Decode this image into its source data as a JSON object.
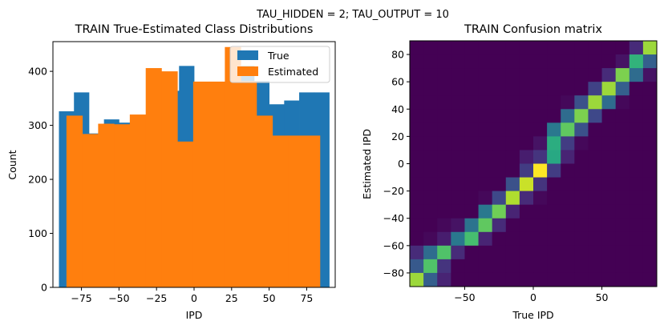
{
  "figure": {
    "suptitle": "TAU_HIDDEN = 2; TAU_OUTPUT = 10"
  },
  "colors": {
    "true": "#1f77b4",
    "estimated": "#ff7f0e",
    "viridis": [
      "#440154",
      "#482878",
      "#3e4989",
      "#31688e",
      "#26828e",
      "#1f9e89",
      "#35b779",
      "#6ece58",
      "#b5de2b",
      "#fde725"
    ]
  },
  "chart_data": [
    {
      "type": "bar",
      "title": "TRAIN True-Estimated Class Distributions",
      "xlabel": "IPD",
      "ylabel": "Count",
      "xlim": [
        -94,
        94
      ],
      "ylim": [
        0,
        455
      ],
      "xticks": [
        -75,
        -50,
        -25,
        0,
        25,
        50,
        75
      ],
      "xtick_labels": [
        "−75",
        "−50",
        "−25",
        "0",
        "25",
        "50",
        "75"
      ],
      "yticks": [
        0,
        100,
        200,
        300,
        400
      ],
      "yticks_labels": [
        "0",
        "100",
        "200",
        "300",
        "400"
      ],
      "legend": {
        "position": "upper right",
        "entries": [
          "True",
          "Estimated"
        ]
      },
      "series": [
        {
          "name": "True",
          "bin_edges": [
            -90,
            -80,
            -70,
            -60,
            -50,
            -40,
            -30,
            -20,
            -10,
            0,
            10,
            20,
            30,
            40,
            50,
            60,
            70,
            80,
            90
          ],
          "values": [
            326,
            361,
            285,
            311,
            305,
            318,
            380,
            364,
            410,
            327,
            380,
            362,
            410,
            382,
            339,
            346,
            361,
            361
          ]
        },
        {
          "name": "Estimated",
          "bin_edges": [
            -85,
            -74.4,
            -63.9,
            -53.3,
            -42.8,
            -32.2,
            -21.7,
            -11.1,
            -0.6,
            10,
            20.5,
            31.1,
            41.6,
            52.2,
            62.7,
            73.3,
            83.8
          ],
          "values": [
            318,
            284,
            303,
            302,
            320,
            406,
            400,
            270,
            381,
            381,
            445,
            382,
            318,
            281,
            281,
            281
          ]
        }
      ]
    },
    {
      "type": "heatmap",
      "title": "TRAIN Confusion matrix",
      "xlabel": "True IPD",
      "ylabel": "Estimated IPD",
      "extent": [
        -90,
        90,
        -90,
        90
      ],
      "xticks": [
        -50,
        0,
        50
      ],
      "xtick_labels": [
        "−50",
        "0",
        "50"
      ],
      "yticks": [
        -80,
        -60,
        -40,
        -20,
        0,
        20,
        40,
        60,
        80
      ],
      "ytick_labels": [
        "−80",
        "−60",
        "−40",
        "−20",
        "0",
        "20",
        "40",
        "60",
        "80"
      ],
      "colormap": "viridis",
      "cells_note": "rows ordered top (estimated +85) to bottom (estimated −85), columns left (true −85) to right (true +85); values 0..1",
      "matrix": [
        [
          0,
          0,
          0,
          0,
          0,
          0,
          0,
          0,
          0,
          0,
          0,
          0,
          0,
          0,
          0,
          0,
          0.12,
          0.85
        ],
        [
          0,
          0,
          0,
          0,
          0,
          0,
          0,
          0,
          0,
          0,
          0,
          0,
          0,
          0,
          0,
          0.05,
          0.65,
          0.3
        ],
        [
          0,
          0,
          0,
          0,
          0,
          0,
          0,
          0,
          0,
          0,
          0,
          0,
          0,
          0,
          0.12,
          0.8,
          0.35,
          0.05
        ],
        [
          0,
          0,
          0,
          0,
          0,
          0,
          0,
          0,
          0,
          0,
          0,
          0,
          0,
          0.2,
          0.85,
          0.3,
          0,
          0
        ],
        [
          0,
          0,
          0,
          0,
          0,
          0,
          0,
          0,
          0,
          0,
          0,
          0.02,
          0.25,
          0.85,
          0.35,
          0.02,
          0,
          0
        ],
        [
          0,
          0,
          0,
          0,
          0,
          0,
          0,
          0,
          0,
          0,
          0,
          0.35,
          0.8,
          0.22,
          0,
          0,
          0,
          0
        ],
        [
          0,
          0,
          0,
          0,
          0,
          0,
          0,
          0,
          0,
          0,
          0.4,
          0.75,
          0.25,
          0,
          0,
          0,
          0,
          0
        ],
        [
          0,
          0,
          0,
          0,
          0,
          0,
          0,
          0,
          0,
          0.05,
          0.62,
          0.18,
          0.02,
          0,
          0,
          0,
          0,
          0
        ],
        [
          0,
          0,
          0,
          0,
          0,
          0,
          0,
          0,
          0.08,
          0.15,
          0.6,
          0.1,
          0,
          0,
          0,
          0,
          0,
          0
        ],
        [
          0,
          0,
          0,
          0,
          0,
          0,
          0,
          0,
          0.18,
          1.0,
          0.18,
          0,
          0,
          0,
          0,
          0,
          0,
          0
        ],
        [
          0,
          0,
          0,
          0,
          0,
          0,
          0,
          0.25,
          0.92,
          0.15,
          0,
          0,
          0,
          0,
          0,
          0,
          0,
          0
        ],
        [
          0,
          0,
          0,
          0,
          0,
          0.02,
          0.22,
          0.88,
          0.12,
          0.02,
          0,
          0,
          0,
          0,
          0,
          0,
          0,
          0
        ],
        [
          0,
          0,
          0,
          0,
          0,
          0.4,
          0.78,
          0.1,
          0,
          0,
          0,
          0,
          0,
          0,
          0,
          0,
          0,
          0
        ],
        [
          0,
          0,
          0.02,
          0.05,
          0.38,
          0.75,
          0.12,
          0,
          0,
          0,
          0,
          0,
          0,
          0,
          0,
          0,
          0,
          0
        ],
        [
          0,
          0.02,
          0.08,
          0.4,
          0.7,
          0.1,
          0,
          0,
          0,
          0,
          0,
          0,
          0,
          0,
          0,
          0,
          0,
          0
        ],
        [
          0.12,
          0.35,
          0.72,
          0.12,
          0,
          0,
          0,
          0,
          0,
          0,
          0,
          0,
          0,
          0,
          0,
          0,
          0,
          0
        ],
        [
          0.28,
          0.72,
          0.15,
          0,
          0,
          0,
          0,
          0,
          0,
          0,
          0,
          0,
          0,
          0,
          0,
          0,
          0,
          0
        ],
        [
          0.85,
          0.3,
          0.1,
          0,
          0,
          0,
          0,
          0,
          0,
          0,
          0,
          0,
          0,
          0,
          0,
          0,
          0,
          0
        ]
      ]
    }
  ]
}
